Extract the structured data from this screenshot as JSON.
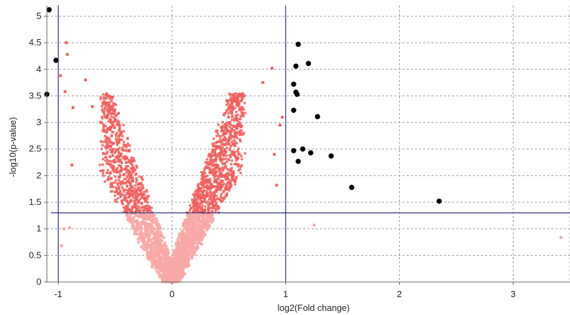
{
  "chart_data": {
    "type": "scatter",
    "title": "",
    "xlabel": "log2(Fold change)",
    "ylabel": "-log10(p-value)",
    "xlim": [
      -1.1,
      3.5
    ],
    "ylim": [
      0,
      5.2
    ],
    "x_ticks": [
      -1,
      0,
      1,
      2,
      3
    ],
    "y_ticks": [
      0,
      0.5,
      1,
      1.5,
      2,
      2.5,
      3,
      3.5,
      4,
      4.5,
      5
    ],
    "grid": true,
    "legend": "none",
    "thresholds": {
      "fold_change_lines": [
        -1,
        1
      ],
      "pvalue_line": 1.3
    },
    "colors": {
      "nonsignificant": "#f7a8a6",
      "significant_small_fc": "#ee5f5d",
      "highlighted": "#000000",
      "threshold_line": "#2b2f7a",
      "grid": "#9a9a9a"
    },
    "highlighted_points": [
      {
        "x": -1.08,
        "y": 5.12
      },
      {
        "x": -1.02,
        "y": 4.17
      },
      {
        "x": -1.1,
        "y": 3.53
      },
      {
        "x": 1.11,
        "y": 4.47
      },
      {
        "x": 1.2,
        "y": 4.11
      },
      {
        "x": 1.09,
        "y": 4.06
      },
      {
        "x": 1.07,
        "y": 3.72
      },
      {
        "x": 1.09,
        "y": 3.57
      },
      {
        "x": 1.1,
        "y": 3.53
      },
      {
        "x": 1.07,
        "y": 3.23
      },
      {
        "x": 1.28,
        "y": 3.11
      },
      {
        "x": 1.15,
        "y": 2.5
      },
      {
        "x": 1.07,
        "y": 2.47
      },
      {
        "x": 1.22,
        "y": 2.43
      },
      {
        "x": 1.4,
        "y": 2.37
      },
      {
        "x": 1.11,
        "y": 2.27
      },
      {
        "x": 1.58,
        "y": 1.78
      },
      {
        "x": 2.35,
        "y": 1.52
      }
    ],
    "outlier_points": [
      {
        "x": -0.93,
        "y": 4.5
      },
      {
        "x": -0.92,
        "y": 4.28
      },
      {
        "x": -0.98,
        "y": 3.88
      },
      {
        "x": -0.76,
        "y": 3.8
      },
      {
        "x": -0.94,
        "y": 3.58
      },
      {
        "x": -0.87,
        "y": 3.28
      },
      {
        "x": -0.7,
        "y": 3.3
      },
      {
        "x": -0.6,
        "y": 2.95
      },
      {
        "x": -0.88,
        "y": 2.2
      },
      {
        "x": -0.95,
        "y": 1.0
      },
      {
        "x": -0.97,
        "y": 0.68
      },
      {
        "x": -0.9,
        "y": 1.02
      },
      {
        "x": 0.88,
        "y": 4.02
      },
      {
        "x": 0.8,
        "y": 3.75
      },
      {
        "x": 0.95,
        "y": 2.95
      },
      {
        "x": 0.97,
        "y": 3.1
      },
      {
        "x": 0.9,
        "y": 2.4
      },
      {
        "x": 1.25,
        "y": 1.07
      },
      {
        "x": 3.42,
        "y": 0.84
      },
      {
        "x": 0.92,
        "y": 1.82
      }
    ]
  }
}
